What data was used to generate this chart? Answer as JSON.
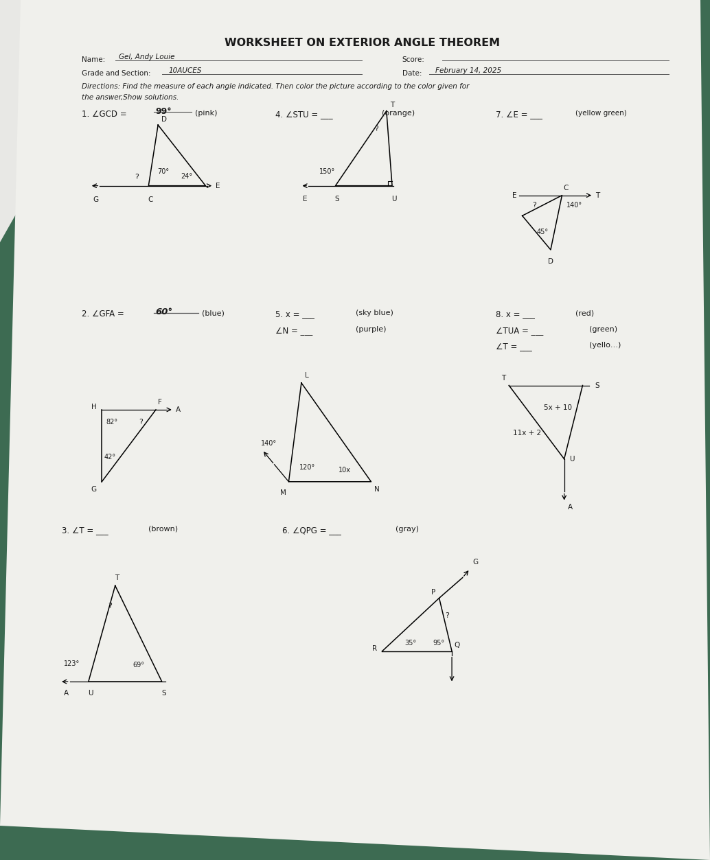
{
  "title": "WORKSHEET ON EXTERIOR ANGLE THEOREM",
  "bg_green": "#3d6b52",
  "paper_color": "#e8e8e5",
  "text_color": "#1a1a1a",
  "name_written": "Gel, Andy Louie",
  "grade_written": "10AUCES",
  "score_written": "",
  "date_written": "February 14, 2025",
  "directions_line1": "Directions: Find the measure of each angle indicated. Then color the picture according to the color given for",
  "directions_line2": "the answer,Show solutions."
}
